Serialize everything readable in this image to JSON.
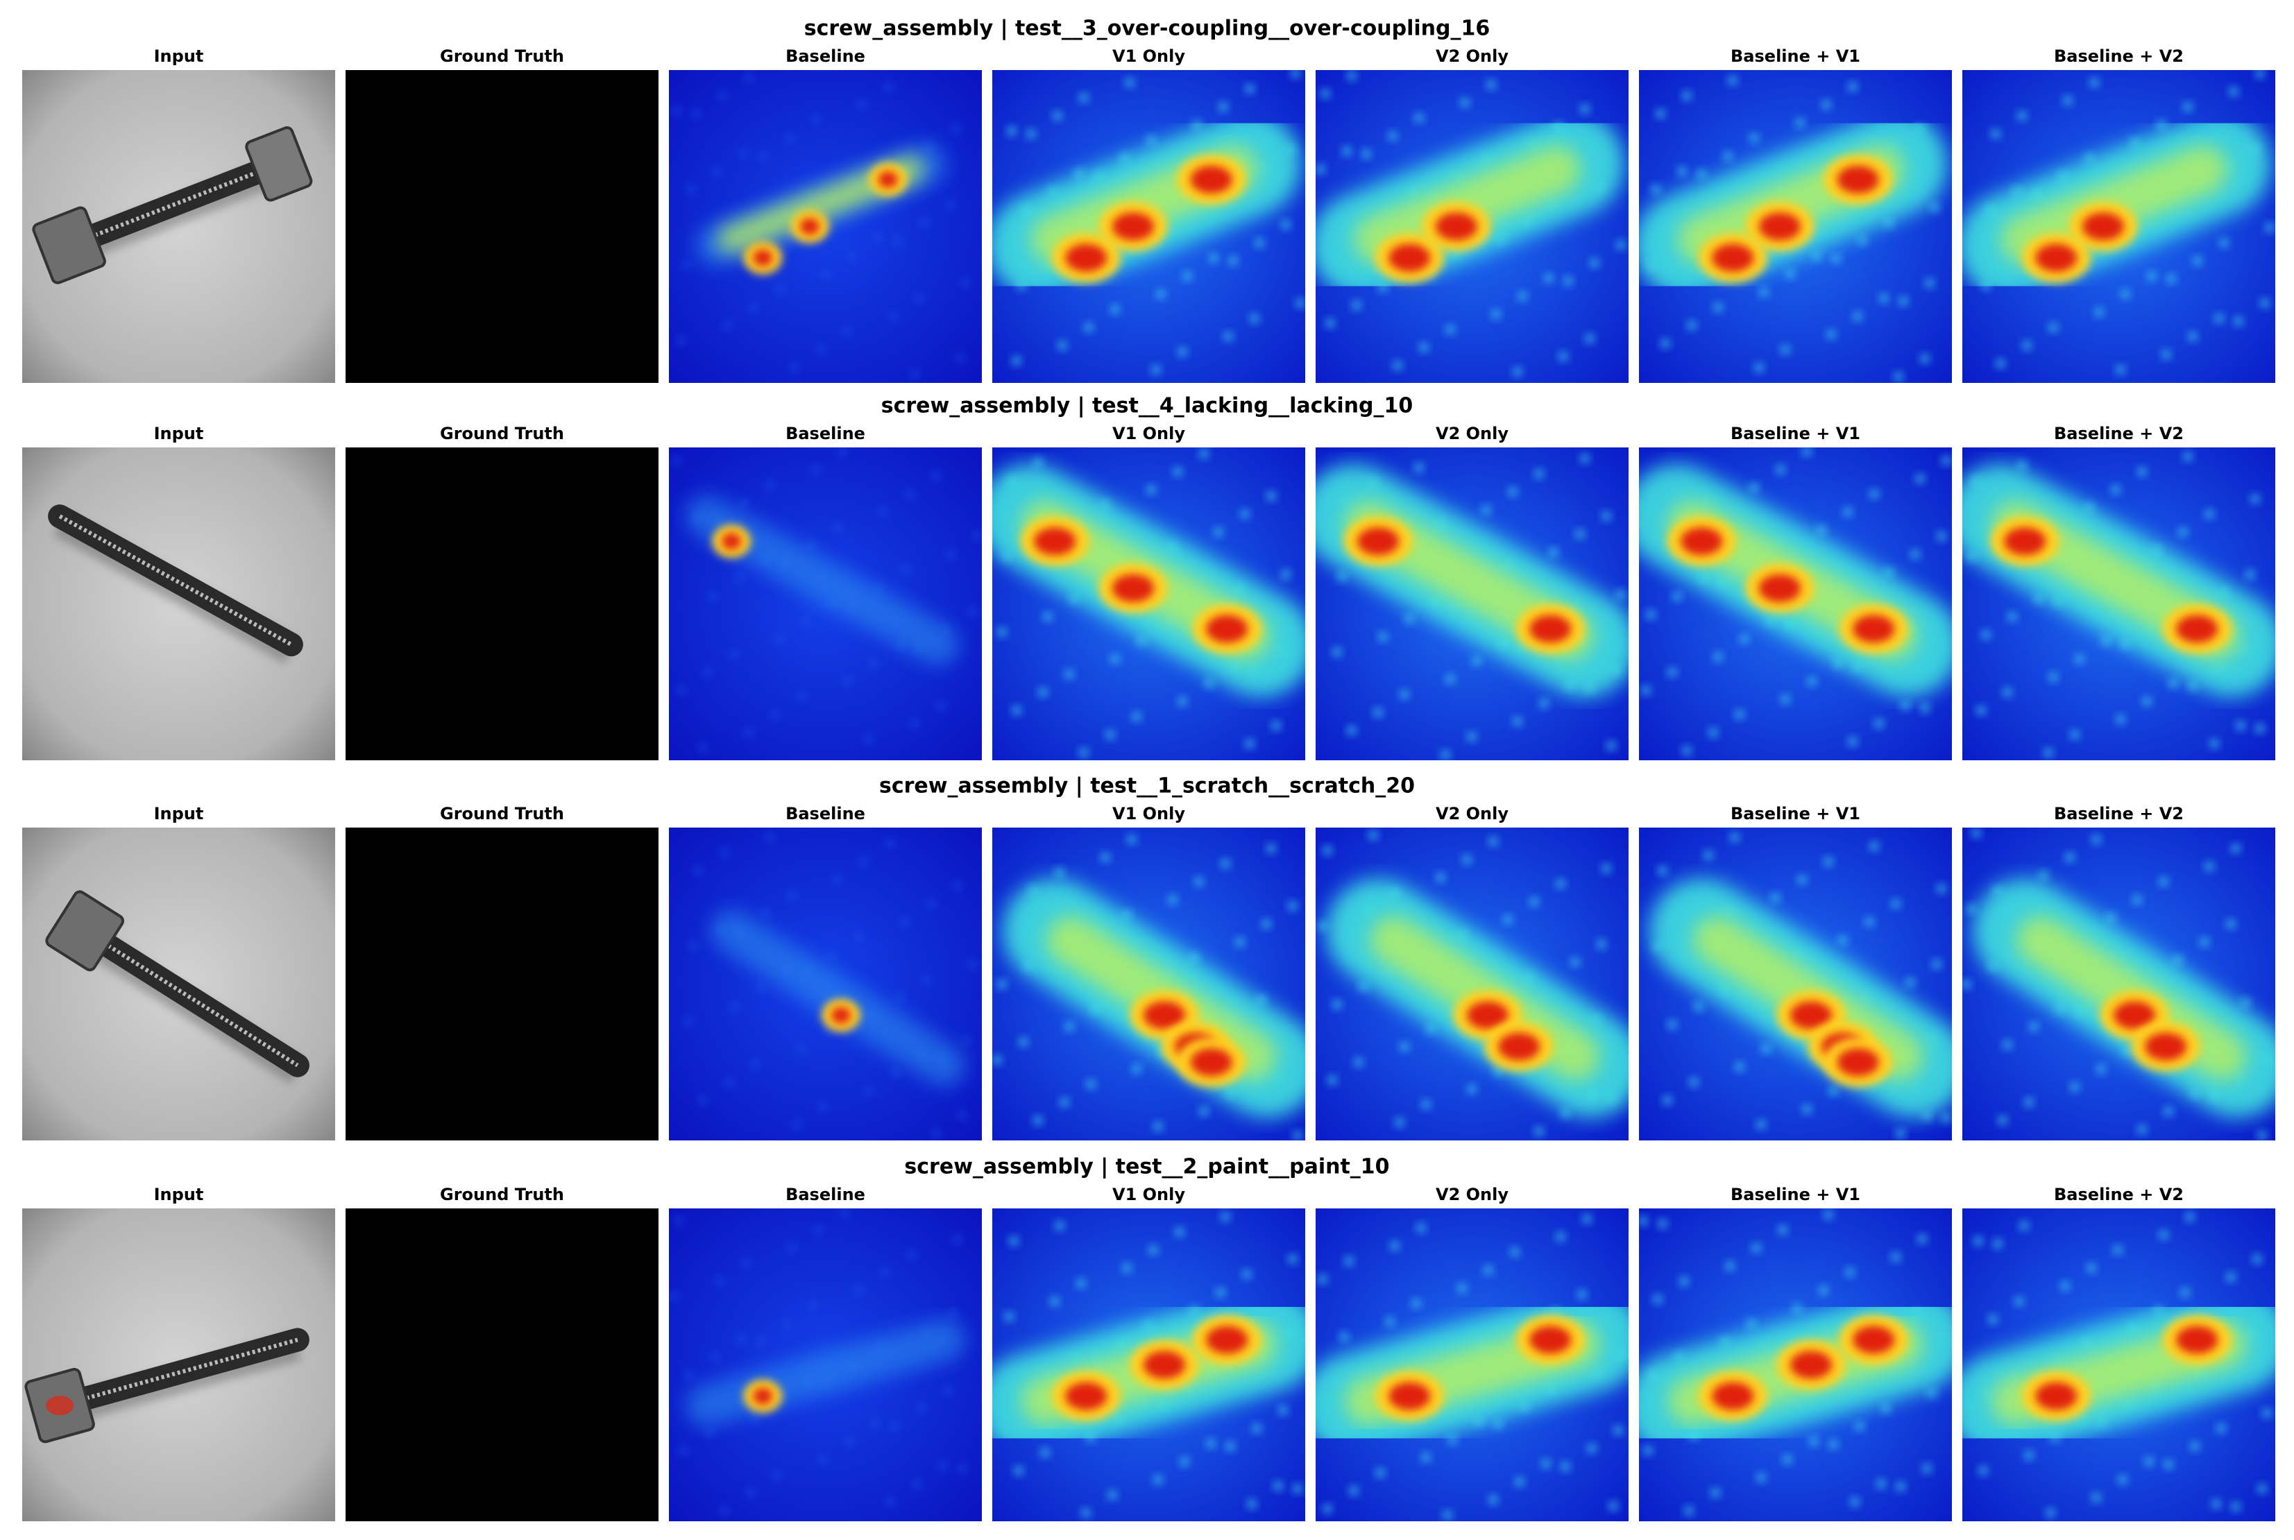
{
  "rows": [
    {
      "title": "screw_assembly | test__3_over-coupling__over-coupling_16",
      "panels": [
        "Input",
        "Ground Truth",
        "Baseline",
        "V1 Only",
        "V2 Only",
        "Baseline + V1",
        "Baseline + V2"
      ]
    },
    {
      "title": "screw_assembly | test__4_lacking__lacking_10",
      "panels": [
        "Input",
        "Ground Truth",
        "Baseline",
        "V1 Only",
        "V2 Only",
        "Baseline + V1",
        "Baseline + V2"
      ]
    },
    {
      "title": "screw_assembly | test__1_scratch__scratch_20",
      "panels": [
        "Input",
        "Ground Truth",
        "Baseline",
        "V1 Only",
        "V2 Only",
        "Baseline + V1",
        "Baseline + V2"
      ]
    },
    {
      "title": "screw_assembly | test__2_paint__paint_10",
      "panels": [
        "Input",
        "Ground Truth",
        "Baseline",
        "V1 Only",
        "V2 Only",
        "Baseline + V1",
        "Baseline + V2"
      ]
    }
  ]
}
